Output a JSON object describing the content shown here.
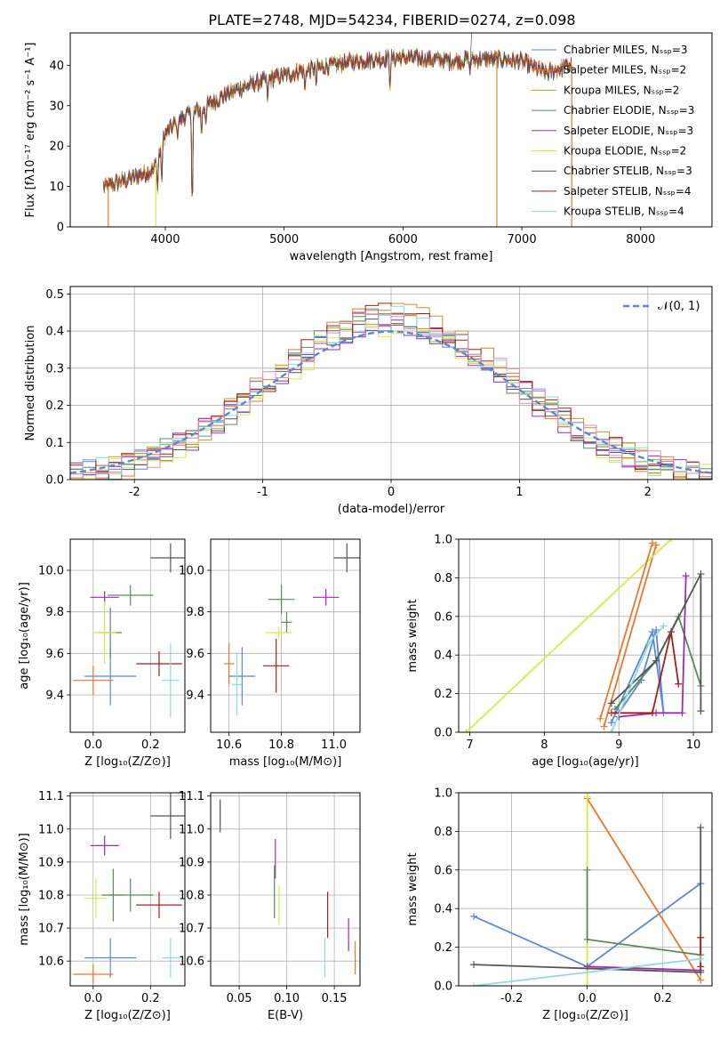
{
  "page_title": "PLATE=2748, MJD=54234, FIBERID=0274, z=0.098",
  "series_colors": [
    "#5b87d6",
    "#e8762c",
    "#b99b2b",
    "#5a8a5a",
    "#9c2db0",
    "#d6ea46",
    "#555555",
    "#a81c1c",
    "#8fdada"
  ],
  "extra_colors": {
    "pink": "#e08ac0",
    "normal_curve": "#5b87d6"
  },
  "chart_data": [
    {
      "id": "spectrum",
      "type": "line",
      "title": "PLATE=2748, MJD=54234, FIBERID=0274, z=0.098",
      "xlabel": "wavelength [Angstrom, rest frame]",
      "ylabel": "Flux [fλ10⁻¹⁷ erg cm⁻² s⁻¹ A⁻¹]",
      "xlim": [
        3200,
        8600
      ],
      "ylim": [
        0,
        48
      ],
      "xticks": [
        4000,
        5000,
        6000,
        7000,
        8000
      ],
      "yticks": [
        0,
        10,
        20,
        30,
        40
      ],
      "grid": false,
      "legend": "right",
      "legend_entries": [
        "Chabrier MILES, Nₛₛₚ=3",
        "Salpeter MILES, Nₛₛₚ=2",
        "Kroupa MILES, Nₛₛₚ=2",
        "Chabrier ELODIE, Nₛₛₚ=3",
        "Salpeter ELODIE, Nₛₛₚ=3",
        "Kroupa ELODIE, Nₛₛₚ=2",
        "Chabrier STELIB, Nₛₛₚ=3",
        "Salpeter STELIB, Nₛₛₚ=4",
        "Kroupa STELIB, Nₛₛₚ=4"
      ],
      "continuum": {
        "x": [
          3500,
          3600,
          3700,
          3800,
          3900,
          4000,
          4100,
          4200,
          4300,
          4400,
          4600,
          4800,
          5000,
          5200,
          5400,
          5600,
          5800,
          6000,
          6200,
          6400,
          6600,
          6800,
          7000,
          7200,
          7300,
          7400
        ],
        "y": [
          10,
          11,
          12,
          13,
          14,
          23,
          26,
          28,
          29,
          31,
          34,
          36,
          37.5,
          39,
          40,
          41,
          41.5,
          42,
          41.5,
          41,
          41.5,
          41.5,
          41,
          38,
          39,
          40
        ]
      },
      "absorption_lines": [
        {
          "x": 3935,
          "y": 8
        },
        {
          "x": 3970,
          "y": 10
        },
        {
          "x": 4102,
          "y": 22
        },
        {
          "x": 4227,
          "y": 0
        },
        {
          "x": 4305,
          "y": 22
        },
        {
          "x": 4341,
          "y": 25
        },
        {
          "x": 4861,
          "y": 31
        },
        {
          "x": 5175,
          "y": 33
        },
        {
          "x": 5270,
          "y": 35
        },
        {
          "x": 5890,
          "y": 33
        },
        {
          "x": 6563,
          "y": 38
        }
      ],
      "cut_lines": [
        {
          "x": 3520,
          "series": 1
        },
        {
          "x": 3920,
          "series": 5
        },
        {
          "x": 6790,
          "series": 2
        },
        {
          "x": 7420,
          "series": 1
        }
      ]
    },
    {
      "id": "residuals",
      "type": "histogram",
      "xlabel": "(data-model)/error",
      "ylabel": "Normed distribution",
      "xlim": [
        -2.5,
        2.5
      ],
      "ylim": [
        0,
        0.52
      ],
      "xticks": [
        -2,
        -1,
        0,
        1,
        2
      ],
      "yticks": [
        0.0,
        0.1,
        0.2,
        0.3,
        0.4,
        0.5
      ],
      "grid": true,
      "legend": "top-right",
      "legend_entries": [
        "𝒩(0, 1)"
      ],
      "bin_width": 0.1
    },
    {
      "id": "age-vs-Z",
      "type": "errorbar",
      "xlabel": "Z [log₁₀(Z/Z⊙)]",
      "ylabel": "age  [log₁₀(age/yr)]",
      "xlim": [
        -0.08,
        0.32
      ],
      "ylim": [
        9.22,
        10.15
      ],
      "xticks": [
        0.0,
        0.2
      ],
      "yticks": [
        9.4,
        9.6,
        9.8,
        10.0
      ],
      "points": [
        {
          "s": 0,
          "x": 0.06,
          "y": 9.49,
          "xerr": 0.09,
          "yerr": 0.14
        },
        {
          "s": 1,
          "x": 0.0,
          "y": 9.47,
          "xerr": 0.07,
          "yerr": 0.07
        },
        {
          "s": 4,
          "x": 0.04,
          "y": 9.87,
          "xerr": 0.05,
          "yerr": 0.03
        },
        {
          "s": 3,
          "x": 0.06,
          "y": 9.7,
          "xerr": 0.04,
          "yerr": 0.12
        },
        {
          "s": 5,
          "x": 0.04,
          "y": 9.7,
          "xerr": 0.04,
          "yerr": 0.15
        },
        {
          "s": 3,
          "x": 0.13,
          "y": 9.88,
          "xerr": 0.08,
          "yerr": 0.05
        },
        {
          "s": 6,
          "x": 0.27,
          "y": 10.06,
          "xerr": 0.07,
          "yerr": 0.07
        },
        {
          "s": 7,
          "x": 0.23,
          "y": 9.55,
          "xerr": 0.08,
          "yerr": 0.06
        },
        {
          "s": 8,
          "x": 0.27,
          "y": 9.47,
          "xerr": 0.03,
          "yerr": 0.18
        }
      ]
    },
    {
      "id": "age-vs-mass",
      "type": "errorbar",
      "xlabel": "mass [log₁₀(M/M⊙)]",
      "ylabel": "",
      "xlim": [
        10.53,
        11.1
      ],
      "ylim": [
        9.22,
        10.15
      ],
      "xticks": [
        10.6,
        10.8,
        11.0
      ],
      "yticks": [
        9.4,
        9.6,
        9.8,
        10.0
      ],
      "points": [
        {
          "s": 0,
          "x": 10.65,
          "y": 9.49,
          "xerr": 0.05,
          "yerr": 0.14
        },
        {
          "s": 1,
          "x": 10.6,
          "y": 9.55,
          "xerr": 0.02,
          "yerr": 0.1
        },
        {
          "s": 8,
          "x": 10.63,
          "y": 9.45,
          "xerr": 0.02,
          "yerr": 0.15
        },
        {
          "s": 3,
          "x": 10.8,
          "y": 9.86,
          "xerr": 0.05,
          "yerr": 0.07
        },
        {
          "s": 5,
          "x": 10.79,
          "y": 9.7,
          "xerr": 0.05,
          "yerr": 0.03
        },
        {
          "s": 3,
          "x": 10.82,
          "y": 9.75,
          "xerr": 0.02,
          "yerr": 0.05
        },
        {
          "s": 7,
          "x": 10.78,
          "y": 9.54,
          "xerr": 0.05,
          "yerr": 0.13
        },
        {
          "s": 4,
          "x": 10.97,
          "y": 9.87,
          "xerr": 0.05,
          "yerr": 0.04
        },
        {
          "s": 6,
          "x": 11.05,
          "y": 10.06,
          "xerr": 0.05,
          "yerr": 0.07
        }
      ]
    },
    {
      "id": "weight-vs-age",
      "type": "line",
      "xlabel": "age  [log₁₀(age/yr)]",
      "ylabel": "mass weight",
      "xlim": [
        6.85,
        10.25
      ],
      "ylim": [
        0,
        1
      ],
      "xticks": [
        7,
        8,
        9,
        10
      ],
      "yticks": [
        0.0,
        0.2,
        0.4,
        0.6,
        0.8,
        1.0
      ],
      "grid": true,
      "series": [
        {
          "s": 0,
          "x": [
            9.0,
            9.3,
            9.5,
            9.6,
            9.45,
            8.9
          ],
          "y": [
            0.1,
            0.27,
            0.53,
            0.1,
            0.52,
            0.05
          ]
        },
        {
          "s": 1,
          "x": [
            8.8,
            9.5
          ],
          "y": [
            0.03,
            0.97
          ]
        },
        {
          "s": 5,
          "x": [
            6.95,
            9.7
          ],
          "y": [
            0.0,
            1.0
          ]
        },
        {
          "s": 3,
          "x": [
            8.95,
            9.5,
            9.8,
            10.1
          ],
          "y": [
            0.12,
            0.37,
            0.6,
            0.24
          ]
        },
        {
          "s": 4,
          "x": [
            9.0,
            9.5,
            9.85,
            9.9
          ],
          "y": [
            0.08,
            0.1,
            0.1,
            0.81
          ]
        },
        {
          "s": 7,
          "x": [
            8.9,
            9.45,
            9.7,
            9.8
          ],
          "y": [
            0.1,
            0.1,
            0.52,
            0.25
          ]
        },
        {
          "s": 6,
          "x": [
            8.9,
            9.5,
            10.1,
            10.1
          ],
          "y": [
            0.15,
            0.37,
            0.82,
            0.11
          ]
        },
        {
          "s": 8,
          "x": [
            8.9,
            9.4,
            9.6
          ],
          "y": [
            0.0,
            0.46,
            0.55
          ]
        },
        {
          "s": 1,
          "x": [
            8.75,
            9.45
          ],
          "y": [
            0.07,
            0.98
          ]
        }
      ]
    },
    {
      "id": "mass-vs-Z",
      "type": "errorbar",
      "xlabel": "Z [log₁₀(Z/Z⊙)]",
      "ylabel": "mass [log₁₀(M/M⊙)]",
      "xlim": [
        -0.08,
        0.32
      ],
      "ylim": [
        10.525,
        11.11
      ],
      "xticks": [
        0.0,
        0.2
      ],
      "yticks": [
        10.6,
        10.7,
        10.8,
        10.9,
        11.0,
        11.1
      ],
      "points": [
        {
          "s": 0,
          "x": 0.06,
          "y": 10.61,
          "xerr": 0.09,
          "yerr": 0.06
        },
        {
          "s": 1,
          "x": 0.0,
          "y": 10.56,
          "xerr": 0.07,
          "yerr": 0.03
        },
        {
          "s": 4,
          "x": 0.04,
          "y": 10.95,
          "xerr": 0.05,
          "yerr": 0.03
        },
        {
          "s": 3,
          "x": 0.07,
          "y": 10.8,
          "xerr": 0.04,
          "yerr": 0.08
        },
        {
          "s": 5,
          "x": 0.01,
          "y": 10.79,
          "xerr": 0.04,
          "yerr": 0.06
        },
        {
          "s": 3,
          "x": 0.13,
          "y": 10.8,
          "xerr": 0.08,
          "yerr": 0.05
        },
        {
          "s": 6,
          "x": 0.27,
          "y": 11.04,
          "xerr": 0.07,
          "yerr": 0.07
        },
        {
          "s": 7,
          "x": 0.23,
          "y": 10.77,
          "xerr": 0.08,
          "yerr": 0.04
        },
        {
          "s": 8,
          "x": 0.27,
          "y": 10.61,
          "xerr": 0.03,
          "yerr": 0.06
        }
      ]
    },
    {
      "id": "mass-vs-ebv",
      "type": "errorbar",
      "xlabel": "E(B-V)",
      "ylabel": "",
      "xlim": [
        0.02,
        0.177
      ],
      "ylim": [
        10.525,
        11.11
      ],
      "xticks": [
        0.05,
        0.1,
        0.15
      ],
      "yticks": [
        10.6,
        10.7,
        10.8,
        10.9,
        11.0,
        11.1
      ],
      "points": [
        {
          "s": 6,
          "x": 0.03,
          "y": 11.04,
          "xerr": 0,
          "yerr": 0.05
        },
        {
          "s": 4,
          "x": 0.088,
          "y": 10.91,
          "xerr": 0,
          "yerr": 0.06
        },
        {
          "s": 3,
          "x": 0.087,
          "y": 10.81,
          "xerr": 0,
          "yerr": 0.08
        },
        {
          "s": 5,
          "x": 0.092,
          "y": 10.77,
          "xerr": 0,
          "yerr": 0.06
        },
        {
          "s": 8,
          "x": 0.14,
          "y": 10.61,
          "xerr": 0,
          "yerr": 0.06
        },
        {
          "s": 7,
          "x": 0.143,
          "y": 10.74,
          "xerr": 0,
          "yerr": 0.07
        },
        {
          "s": 4,
          "x": 0.165,
          "y": 10.68,
          "xerr": 0,
          "yerr": 0.05
        },
        {
          "s": 1,
          "x": 0.172,
          "y": 10.61,
          "xerr": 0,
          "yerr": 0.05
        }
      ]
    },
    {
      "id": "weight-vs-Z",
      "type": "line",
      "xlabel": "Z [log₁₀(Z/Z⊙)]",
      "ylabel": "mass weight",
      "xlim": [
        -0.34,
        0.33
      ],
      "ylim": [
        0,
        1
      ],
      "xticks": [
        -0.2,
        0.0,
        0.2
      ],
      "yticks": [
        0.0,
        0.2,
        0.4,
        0.6,
        0.8,
        1.0
      ],
      "grid": true,
      "series": [
        {
          "s": 0,
          "x": [
            -0.3,
            0.0,
            0.3
          ],
          "y": [
            0.36,
            0.1,
            0.53
          ]
        },
        {
          "s": 1,
          "x": [
            0.0,
            0.3
          ],
          "y": [
            0.97,
            0.03
          ]
        },
        {
          "s": 5,
          "x": [
            0.0,
            0.0
          ],
          "y": [
            0.0,
            0.98
          ]
        },
        {
          "s": 3,
          "x": [
            0.0,
            0.0,
            0.3
          ],
          "y": [
            0.6,
            0.24,
            0.16
          ]
        },
        {
          "s": 4,
          "x": [
            0.0,
            0.3
          ],
          "y": [
            0.1,
            0.08
          ]
        },
        {
          "s": 6,
          "x": [
            -0.3,
            0.3,
            0.3
          ],
          "y": [
            0.11,
            0.07,
            0.82
          ]
        },
        {
          "s": 7,
          "x": [
            0.3,
            0.3
          ],
          "y": [
            0.1,
            0.25
          ]
        },
        {
          "s": 8,
          "x": [
            -0.3,
            0.3
          ],
          "y": [
            0.0,
            0.14
          ]
        }
      ]
    }
  ]
}
